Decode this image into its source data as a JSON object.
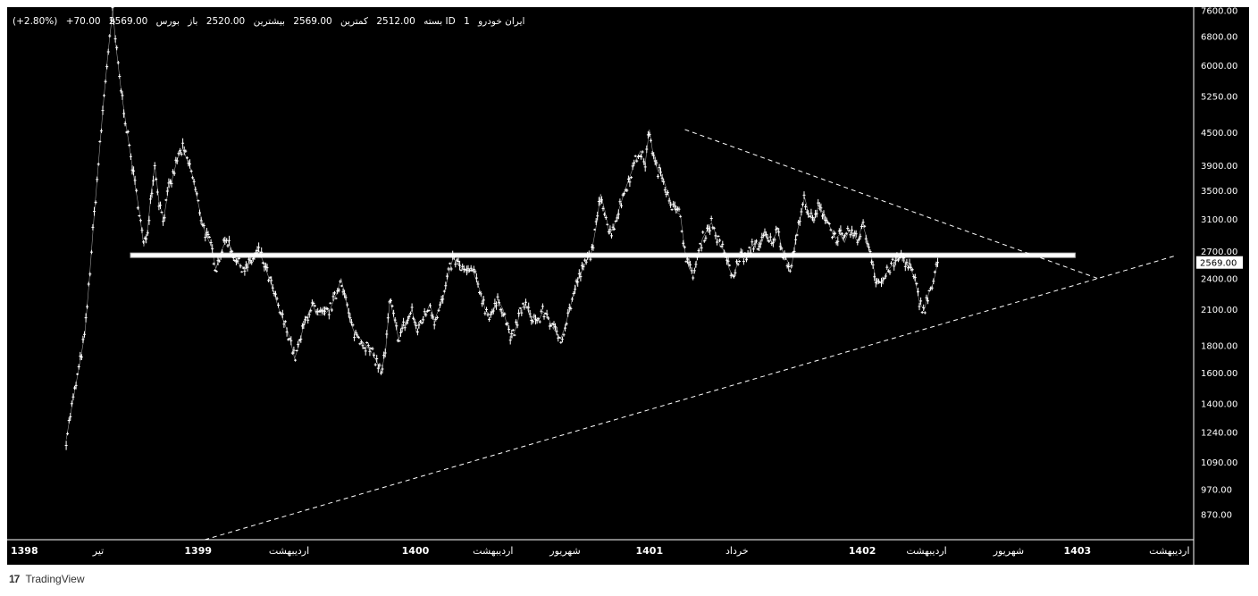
{
  "legend": {
    "symbol": "ایران خودرو",
    "timeframe": "1",
    "source": "بورس ID",
    "open_label": "باز",
    "open": "2520.00",
    "high_label": "بیشترین",
    "high": "2569.00",
    "low_label": "کمترین",
    "low": "2512.00",
    "close_label": "بسته",
    "close": "2569.00",
    "change": "+70.00",
    "change_pct": "(+2.80%)"
  },
  "footer": {
    "brand": "TradingView",
    "logo": "17"
  },
  "chart_data": {
    "type": "line",
    "title": "",
    "xlabel": "",
    "ylabel": "",
    "y_scale": "log",
    "ylim": [
      780,
      7700
    ],
    "grid": false,
    "y_ticks": [
      "7600.00",
      "6800.00",
      "6000.00",
      "5250.00",
      "4500.00",
      "3900.00",
      "3500.00",
      "3100.00",
      "2700.00",
      "2400.00",
      "2100.00",
      "1800.00",
      "1600.00",
      "1400.00",
      "1240.00",
      "1090.00",
      "970.00",
      "870.00"
    ],
    "y_tick_values": [
      7600,
      6800,
      6000,
      5250,
      4500,
      3900,
      3500,
      3100,
      2700,
      2400,
      2100,
      1800,
      1600,
      1400,
      1240,
      1090,
      970,
      870
    ],
    "last_price": "2569.00",
    "x_ticks": [
      {
        "label": "1398",
        "bold": true,
        "t": 0
      },
      {
        "label": "تیر",
        "bold": false,
        "t": 0.079
      },
      {
        "label": "1399",
        "bold": true,
        "t": 0.169
      },
      {
        "label": "اردیبهشت",
        "bold": false,
        "t": 0.251
      },
      {
        "label": "1400",
        "bold": true,
        "t": 0.365
      },
      {
        "label": "اردیبهشت",
        "bold": false,
        "t": 0.435
      },
      {
        "label": "شهریور",
        "bold": false,
        "t": 0.5
      },
      {
        "label": "1401",
        "bold": true,
        "t": 0.576
      },
      {
        "label": "خرداد",
        "bold": false,
        "t": 0.655
      },
      {
        "label": "1402",
        "bold": true,
        "t": 0.768
      },
      {
        "label": "اردیبهشت",
        "bold": false,
        "t": 0.826
      },
      {
        "label": "شهریور",
        "bold": false,
        "t": 0.9
      },
      {
        "label": "1403",
        "bold": true,
        "t": 0.962
      },
      {
        "label": "اردیبهشت",
        "bold": false,
        "t": 1.045
      }
    ],
    "series": [
      {
        "values": [
          [
            0.05,
            1200
          ],
          [
            0.055,
            1380
          ],
          [
            0.062,
            1650
          ],
          [
            0.067,
            1900
          ],
          [
            0.071,
            2400
          ],
          [
            0.075,
            3100
          ],
          [
            0.079,
            3900
          ],
          [
            0.084,
            5200
          ],
          [
            0.088,
            6400
          ],
          [
            0.092,
            7600
          ],
          [
            0.095,
            6500
          ],
          [
            0.099,
            5500
          ],
          [
            0.103,
            4800
          ],
          [
            0.108,
            4100
          ],
          [
            0.112,
            3600
          ],
          [
            0.116,
            3200
          ],
          [
            0.12,
            2750
          ],
          [
            0.123,
            2900
          ],
          [
            0.127,
            3500
          ],
          [
            0.13,
            3900
          ],
          [
            0.134,
            3300
          ],
          [
            0.138,
            3100
          ],
          [
            0.142,
            3500
          ],
          [
            0.146,
            3700
          ],
          [
            0.15,
            4000
          ],
          [
            0.155,
            4200
          ],
          [
            0.159,
            4000
          ],
          [
            0.163,
            3800
          ],
          [
            0.168,
            3400
          ],
          [
            0.172,
            3100
          ],
          [
            0.176,
            2900
          ],
          [
            0.181,
            2750
          ],
          [
            0.185,
            2500
          ],
          [
            0.19,
            2700
          ],
          [
            0.195,
            2850
          ],
          [
            0.2,
            2680
          ],
          [
            0.206,
            2550
          ],
          [
            0.212,
            2500
          ],
          [
            0.218,
            2600
          ],
          [
            0.224,
            2700
          ],
          [
            0.23,
            2500
          ],
          [
            0.236,
            2300
          ],
          [
            0.242,
            2100
          ],
          [
            0.248,
            1950
          ],
          [
            0.252,
            1850
          ],
          [
            0.256,
            1700
          ],
          [
            0.26,
            1800
          ],
          [
            0.264,
            1950
          ],
          [
            0.268,
            2050
          ],
          [
            0.272,
            2150
          ],
          [
            0.276,
            2050
          ],
          [
            0.282,
            2050
          ],
          [
            0.288,
            2100
          ],
          [
            0.294,
            2250
          ],
          [
            0.298,
            2400
          ],
          [
            0.302,
            2200
          ],
          [
            0.306,
            2000
          ],
          [
            0.31,
            1900
          ],
          [
            0.315,
            1850
          ],
          [
            0.32,
            1800
          ],
          [
            0.325,
            1750
          ],
          [
            0.33,
            1680
          ],
          [
            0.334,
            1600
          ],
          [
            0.338,
            1750
          ],
          [
            0.342,
            2200
          ],
          [
            0.346,
            2000
          ],
          [
            0.35,
            1850
          ],
          [
            0.354,
            1950
          ],
          [
            0.358,
            2000
          ],
          [
            0.362,
            2100
          ],
          [
            0.366,
            1900
          ],
          [
            0.37,
            2000
          ],
          [
            0.374,
            2050
          ],
          [
            0.378,
            2150
          ],
          [
            0.382,
            2000
          ],
          [
            0.386,
            2100
          ],
          [
            0.39,
            2200
          ],
          [
            0.395,
            2450
          ],
          [
            0.399,
            2620
          ],
          [
            0.403,
            2550
          ],
          [
            0.407,
            2500
          ],
          [
            0.412,
            2450
          ],
          [
            0.416,
            2500
          ],
          [
            0.42,
            2380
          ],
          [
            0.424,
            2250
          ],
          [
            0.428,
            2100
          ],
          [
            0.432,
            2050
          ],
          [
            0.436,
            2100
          ],
          [
            0.44,
            2180
          ],
          [
            0.444,
            2100
          ],
          [
            0.448,
            1950
          ],
          [
            0.452,
            1850
          ],
          [
            0.456,
            1950
          ],
          [
            0.46,
            2100
          ],
          [
            0.464,
            2150
          ],
          [
            0.468,
            2050
          ],
          [
            0.472,
            2020
          ],
          [
            0.476,
            2000
          ],
          [
            0.48,
            2080
          ],
          [
            0.484,
            2050
          ],
          [
            0.488,
            1950
          ],
          [
            0.492,
            1900
          ],
          [
            0.496,
            1850
          ],
          [
            0.5,
            1950
          ],
          [
            0.504,
            2100
          ],
          [
            0.508,
            2250
          ],
          [
            0.512,
            2400
          ],
          [
            0.516,
            2500
          ],
          [
            0.52,
            2600
          ],
          [
            0.524,
            2700
          ],
          [
            0.528,
            3000
          ],
          [
            0.532,
            3450
          ],
          [
            0.536,
            3200
          ],
          [
            0.54,
            2900
          ],
          [
            0.544,
            3000
          ],
          [
            0.548,
            3200
          ],
          [
            0.552,
            3400
          ],
          [
            0.556,
            3600
          ],
          [
            0.56,
            3800
          ],
          [
            0.564,
            4000
          ],
          [
            0.568,
            4150
          ],
          [
            0.572,
            3900
          ],
          [
            0.576,
            4550
          ],
          [
            0.58,
            4000
          ],
          [
            0.584,
            3800
          ],
          [
            0.588,
            3700
          ],
          [
            0.592,
            3500
          ],
          [
            0.596,
            3300
          ],
          [
            0.6,
            3200
          ],
          [
            0.604,
            3150
          ],
          [
            0.608,
            2700
          ],
          [
            0.612,
            2500
          ],
          [
            0.616,
            2450
          ],
          [
            0.62,
            2650
          ],
          [
            0.624,
            2850
          ],
          [
            0.628,
            2950
          ],
          [
            0.632,
            3050
          ],
          [
            0.636,
            2900
          ],
          [
            0.64,
            2750
          ],
          [
            0.644,
            2700
          ],
          [
            0.648,
            2500
          ],
          [
            0.652,
            2400
          ],
          [
            0.656,
            2600
          ],
          [
            0.66,
            2650
          ],
          [
            0.664,
            2600
          ],
          [
            0.668,
            2750
          ],
          [
            0.672,
            2800
          ],
          [
            0.676,
            2750
          ],
          [
            0.68,
            2900
          ],
          [
            0.684,
            2800
          ],
          [
            0.688,
            2850
          ],
          [
            0.692,
            2950
          ],
          [
            0.696,
            2700
          ],
          [
            0.7,
            2600
          ],
          [
            0.704,
            2500
          ],
          [
            0.708,
            2850
          ],
          [
            0.712,
            3100
          ],
          [
            0.716,
            3400
          ],
          [
            0.72,
            3150
          ],
          [
            0.724,
            3050
          ],
          [
            0.728,
            3250
          ],
          [
            0.732,
            3200
          ],
          [
            0.736,
            3100
          ],
          [
            0.74,
            2950
          ],
          [
            0.744,
            2850
          ],
          [
            0.748,
            2900
          ],
          [
            0.752,
            2800
          ],
          [
            0.756,
            2950
          ],
          [
            0.76,
            2900
          ],
          [
            0.764,
            2800
          ],
          [
            0.768,
            3050
          ],
          [
            0.772,
            2850
          ],
          [
            0.776,
            2650
          ],
          [
            0.78,
            2400
          ],
          [
            0.784,
            2350
          ],
          [
            0.788,
            2400
          ],
          [
            0.792,
            2500
          ],
          [
            0.796,
            2550
          ],
          [
            0.8,
            2600
          ],
          [
            0.804,
            2650
          ],
          [
            0.808,
            2550
          ],
          [
            0.812,
            2500
          ],
          [
            0.816,
            2350
          ],
          [
            0.82,
            2150
          ],
          [
            0.824,
            2100
          ],
          [
            0.828,
            2250
          ],
          [
            0.832,
            2350
          ],
          [
            0.836,
            2569
          ]
        ]
      }
    ],
    "annotations": [
      {
        "type": "horizontal_level",
        "y": 2650,
        "t0": 0.108,
        "t1": 0.96
      },
      {
        "type": "trendline_resistance",
        "p0": [
          0.608,
          4550
        ],
        "p1": [
          0.98,
          2400
        ]
      },
      {
        "type": "trendline_support",
        "p0": [
          0.175,
          780
        ],
        "p1": [
          1.052,
          2650
        ]
      }
    ]
  }
}
